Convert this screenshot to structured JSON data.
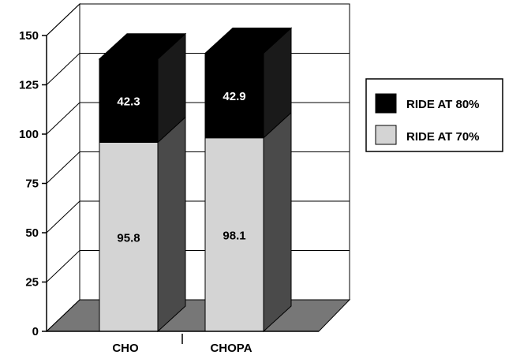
{
  "colors": {
    "ride_80": "#000000",
    "ride_70_front": "#d4d4d4",
    "bar_side": "#4a4a4a",
    "floor": "#777777",
    "grid": "#000000",
    "label_text_on_dark": "#ffffff",
    "label_text_on_light": "#000000"
  },
  "chart_data": {
    "type": "bar",
    "stacked": true,
    "three_d": true,
    "title": "",
    "xlabel": "",
    "ylabel": "",
    "categories": [
      "CHO",
      "CHOPA"
    ],
    "series": [
      {
        "name": "RIDE AT 70%",
        "values": [
          95.8,
          98.1
        ],
        "labels": [
          "95.8",
          "98.1"
        ],
        "color": "#d4d4d4"
      },
      {
        "name": "RIDE AT 80%",
        "values": [
          42.3,
          42.9
        ],
        "labels": [
          "42.3",
          "42.9"
        ],
        "color": "#000000"
      }
    ],
    "ylim": [
      0,
      150
    ],
    "yticks": [
      "0",
      "25",
      "50",
      "75",
      "100",
      "125",
      "150"
    ],
    "grid": true,
    "legend_position": "right",
    "legend": [
      {
        "label": "RIDE AT 80%",
        "color": "#000000"
      },
      {
        "label": "RIDE AT 70%",
        "color": "#d4d4d4"
      }
    ]
  }
}
